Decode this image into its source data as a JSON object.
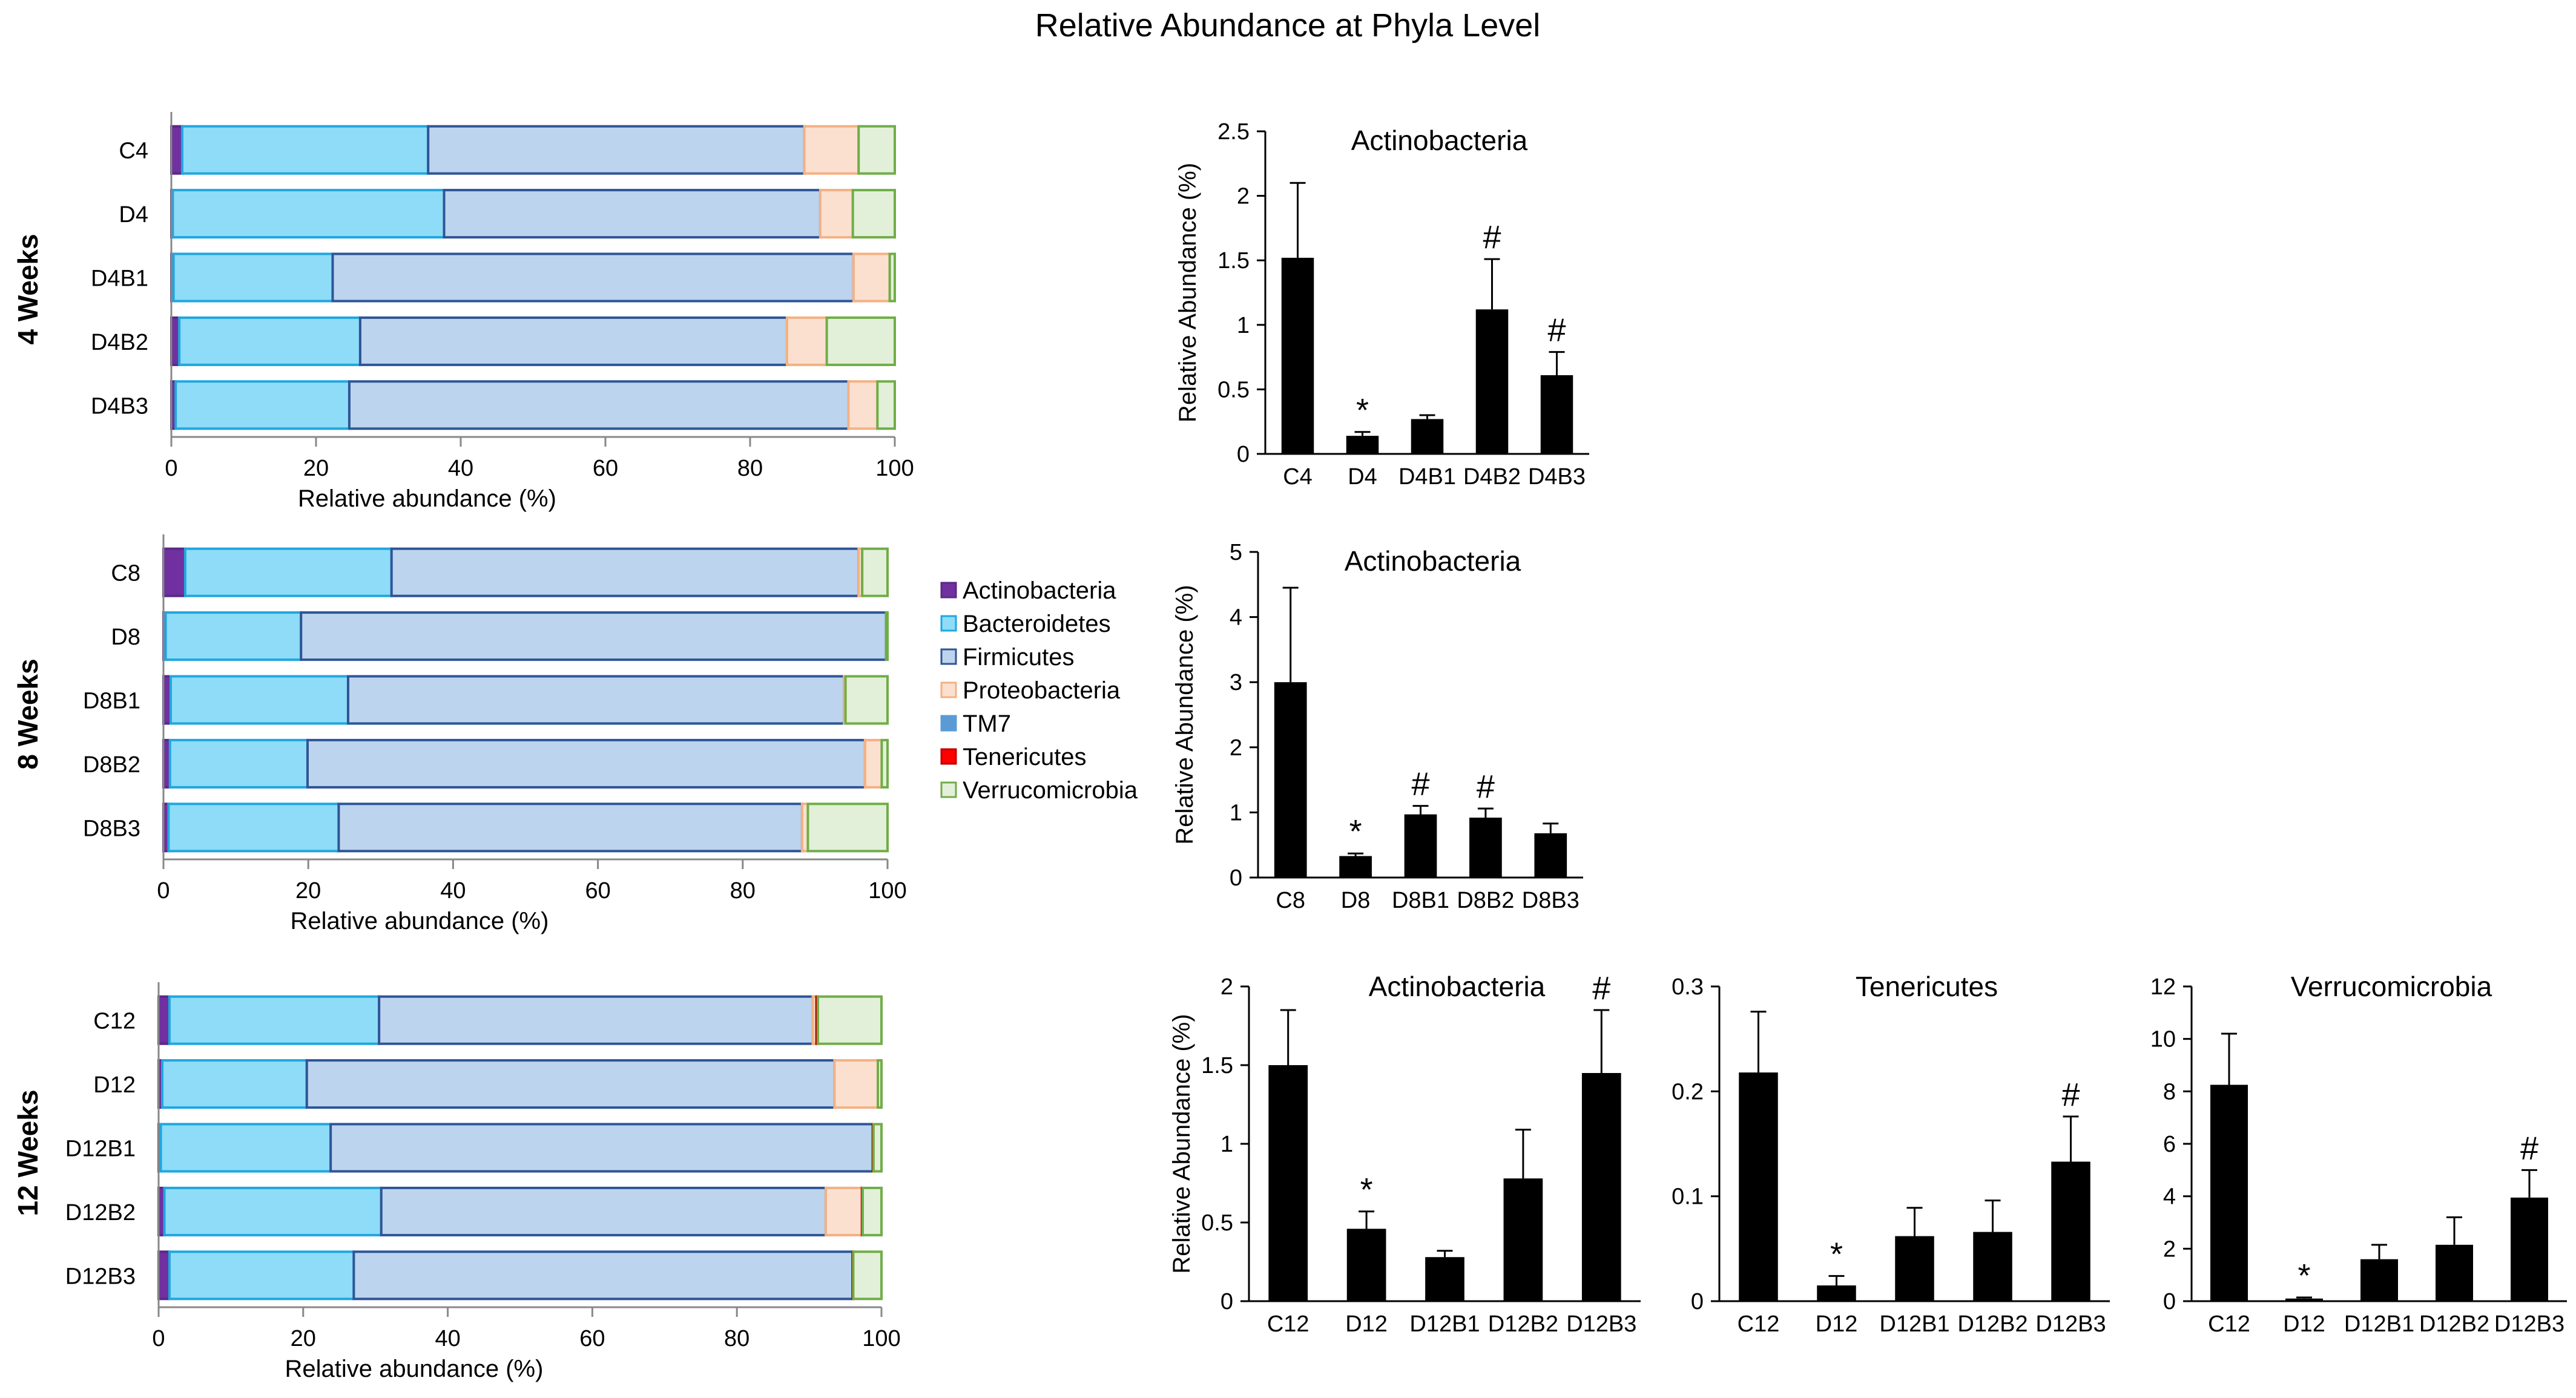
{
  "title": "Relative Abundance at Phyla Level",
  "legend": {
    "items": [
      {
        "name": "Actinobacteria",
        "color": "#7030A0",
        "border": "#5A2A85"
      },
      {
        "name": "Bacteroidetes",
        "color": "#8EDCF7",
        "border": "#1FA7E0"
      },
      {
        "name": "Firmicutes",
        "color": "#BCD4EE",
        "border": "#2F5597"
      },
      {
        "name": "Proteobacteria",
        "color": "#FBE0D0",
        "border": "#F4B183"
      },
      {
        "name": "TM7",
        "color": "#5B9BD5",
        "border": "#5B9BD5"
      },
      {
        "name": "Tenericutes",
        "color": "#FF0000",
        "border": "#C00000"
      },
      {
        "name": "Verrucomicrobia",
        "color": "#E2F0D9",
        "border": "#70AD47"
      }
    ]
  },
  "chart_data": [
    {
      "type": "bar",
      "orientation": "horizontal",
      "stacked": true,
      "group_label": "4 Weeks",
      "xlabel": "Relative abundance (%)",
      "xlim": [
        0,
        100
      ],
      "xticks": [
        "0",
        "20",
        "40",
        "60",
        "80",
        "100"
      ],
      "categories": [
        "C4",
        "D4",
        "D4B1",
        "D4B2",
        "D4B3"
      ],
      "series": [
        {
          "name": "Actinobacteria",
          "values": [
            1.5,
            0.2,
            0.3,
            1.1,
            0.6
          ]
        },
        {
          "name": "Bacteroidetes",
          "values": [
            34.0,
            37.5,
            22.0,
            25.0,
            24.0
          ]
        },
        {
          "name": "Firmicutes",
          "values": [
            52.0,
            52.0,
            72.0,
            59.0,
            69.0
          ]
        },
        {
          "name": "Proteobacteria",
          "values": [
            7.5,
            4.5,
            5.0,
            5.5,
            4.0
          ]
        },
        {
          "name": "TM7",
          "values": [
            0,
            0,
            0,
            0,
            0
          ]
        },
        {
          "name": "Tenericutes",
          "values": [
            0,
            0,
            0,
            0,
            0
          ]
        },
        {
          "name": "Verrucomicrobia",
          "values": [
            5.0,
            5.8,
            0.7,
            9.4,
            2.4
          ]
        }
      ]
    },
    {
      "type": "bar",
      "orientation": "horizontal",
      "stacked": true,
      "group_label": "8 Weeks",
      "xlabel": "Relative abundance (%)",
      "xlim": [
        0,
        100
      ],
      "xticks": [
        "0",
        "20",
        "40",
        "60",
        "80",
        "100"
      ],
      "categories": [
        "C8",
        "D8",
        "D8B1",
        "D8B2",
        "D8B3"
      ],
      "series": [
        {
          "name": "Actinobacteria",
          "values": [
            3.0,
            0.3,
            1.0,
            0.9,
            0.7
          ]
        },
        {
          "name": "Bacteroidetes",
          "values": [
            28.5,
            18.7,
            24.5,
            19.0,
            23.5
          ]
        },
        {
          "name": "Firmicutes",
          "values": [
            64.5,
            80.8,
            68.5,
            77.0,
            64.0
          ]
        },
        {
          "name": "Proteobacteria",
          "values": [
            0.5,
            0,
            0.2,
            2.3,
            0.8
          ]
        },
        {
          "name": "TM7",
          "values": [
            0,
            0,
            0,
            0,
            0
          ]
        },
        {
          "name": "Tenericutes",
          "values": [
            0,
            0,
            0,
            0,
            0
          ]
        },
        {
          "name": "Verrucomicrobia",
          "values": [
            3.5,
            0.2,
            5.8,
            0.8,
            11.0
          ]
        }
      ]
    },
    {
      "type": "bar",
      "orientation": "horizontal",
      "stacked": true,
      "group_label": "12 Weeks",
      "xlabel": "Relative abundance (%)",
      "xlim": [
        0,
        100
      ],
      "xticks": [
        "0",
        "20",
        "40",
        "60",
        "80",
        "100"
      ],
      "categories": [
        "C12",
        "D12",
        "D12B1",
        "D12B2",
        "D12B3"
      ],
      "series": [
        {
          "name": "Actinobacteria",
          "values": [
            1.5,
            0.5,
            0.3,
            0.8,
            1.5
          ]
        },
        {
          "name": "Bacteroidetes",
          "values": [
            29.0,
            20.0,
            23.5,
            30.0,
            25.5
          ]
        },
        {
          "name": "Firmicutes",
          "values": [
            60.0,
            73.0,
            75.0,
            61.5,
            69.0
          ]
        },
        {
          "name": "Proteobacteria",
          "values": [
            0.5,
            6.0,
            0,
            5.0,
            0
          ]
        },
        {
          "name": "TM7",
          "values": [
            0,
            0,
            0,
            0,
            0
          ]
        },
        {
          "name": "Tenericutes",
          "values": [
            0.2,
            0,
            0.1,
            0.1,
            0.1
          ]
        },
        {
          "name": "Verrucomicrobia",
          "values": [
            8.8,
            0.5,
            1.1,
            2.6,
            3.9
          ]
        }
      ]
    },
    {
      "type": "bar",
      "title": "Actinobacteria",
      "ylabel": "Relative Abundance (%)",
      "ylim": [
        0,
        2.5
      ],
      "yticks": [
        "0",
        "0.5",
        "1",
        "1.5",
        "2",
        "2.5"
      ],
      "categories": [
        "C4",
        "D4",
        "D4B1",
        "D4B2",
        "D4B3"
      ],
      "values": [
        1.52,
        0.14,
        0.27,
        1.12,
        0.61
      ],
      "errors": [
        0.58,
        0.03,
        0.03,
        0.39,
        0.18
      ],
      "marks": [
        "",
        "*",
        "",
        "#",
        "#"
      ]
    },
    {
      "type": "bar",
      "title": "Actinobacteria",
      "ylabel": "Relative Abundance (%)",
      "ylim": [
        0,
        5
      ],
      "yticks": [
        "0",
        "1",
        "2",
        "3",
        "4",
        "5"
      ],
      "categories": [
        "C8",
        "D8",
        "D8B1",
        "D8B2",
        "D8B3"
      ],
      "values": [
        3.0,
        0.33,
        0.97,
        0.92,
        0.68
      ],
      "errors": [
        1.45,
        0.04,
        0.13,
        0.14,
        0.15
      ],
      "marks": [
        "",
        "*",
        "#",
        "#",
        ""
      ]
    },
    {
      "type": "bar",
      "title": "Actinobacteria",
      "ylabel": "Relative Abundance (%)",
      "ylim": [
        0,
        2
      ],
      "yticks": [
        "0",
        "0.5",
        "1",
        "1.5",
        "2"
      ],
      "categories": [
        "C12",
        "D12",
        "D12B1",
        "D12B2",
        "D12B3"
      ],
      "values": [
        1.5,
        0.46,
        0.28,
        0.78,
        1.45
      ],
      "errors": [
        0.35,
        0.11,
        0.04,
        0.31,
        0.4
      ],
      "marks": [
        "",
        "*",
        "",
        "",
        "#"
      ]
    },
    {
      "type": "bar",
      "title": "Tenericutes",
      "ylabel": "",
      "ylim": [
        0,
        0.3
      ],
      "yticks": [
        "0",
        "0.1",
        "0.2",
        "0.3"
      ],
      "categories": [
        "C12",
        "D12",
        "D12B1",
        "D12B2",
        "D12B3"
      ],
      "values": [
        0.218,
        0.015,
        0.062,
        0.066,
        0.133
      ],
      "errors": [
        0.058,
        0.009,
        0.027,
        0.03,
        0.043
      ],
      "marks": [
        "",
        "*",
        "",
        "",
        "#"
      ]
    },
    {
      "type": "bar",
      "title": "Verrucomicrobia",
      "ylabel": "",
      "ylim": [
        0,
        12
      ],
      "yticks": [
        "0",
        "2",
        "4",
        "6",
        "8",
        "10",
        "12"
      ],
      "categories": [
        "C12",
        "D12",
        "D12B1",
        "D12B2",
        "D12B3"
      ],
      "values": [
        8.25,
        0.1,
        1.6,
        2.15,
        3.95
      ],
      "errors": [
        1.95,
        0.04,
        0.55,
        1.05,
        1.05
      ],
      "marks": [
        "",
        "*",
        "",
        "",
        "#"
      ]
    }
  ]
}
